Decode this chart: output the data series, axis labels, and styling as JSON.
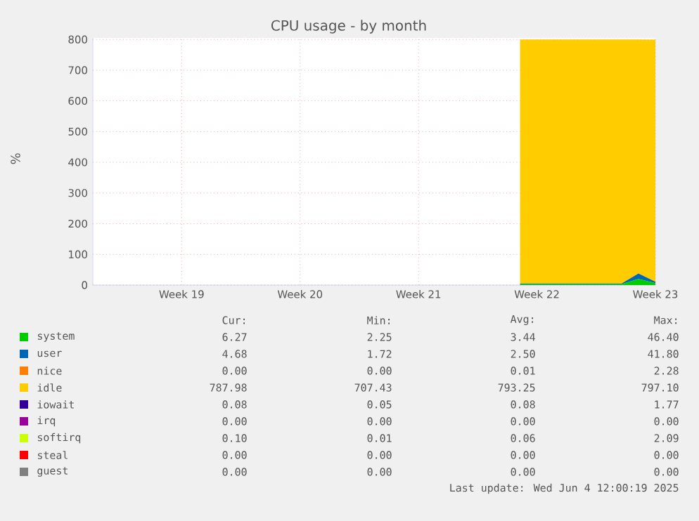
{
  "chart_data": {
    "type": "area",
    "stacked": true,
    "title": "CPU usage - by month",
    "ylabel": "%",
    "grid": true,
    "legend": "bottom",
    "categories": [
      null,
      null,
      null,
      null,
      null,
      "Week 19",
      null,
      null,
      null,
      null,
      null,
      null,
      "Week 20",
      null,
      null,
      null,
      null,
      null,
      null,
      "Week 21",
      null,
      null,
      null,
      null,
      null,
      null,
      "Week 22",
      null,
      null,
      null,
      null,
      null,
      null,
      "Week 23"
    ],
    "ylim": [
      0,
      805
    ],
    "yticks": [
      0,
      100,
      200,
      300,
      400,
      500,
      600,
      700,
      800
    ],
    "series": [
      {
        "name": "system",
        "color": "#00cc00",
        "values": [
          null,
          null,
          null,
          null,
          null,
          null,
          null,
          null,
          null,
          null,
          null,
          null,
          null,
          null,
          null,
          null,
          null,
          null,
          null,
          null,
          null,
          null,
          null,
          null,
          null,
          3,
          3,
          3,
          3,
          3,
          3,
          3,
          20,
          6
        ]
      },
      {
        "name": "user",
        "color": "#0066b3",
        "values": [
          null,
          null,
          null,
          null,
          null,
          null,
          null,
          null,
          null,
          null,
          null,
          null,
          null,
          null,
          null,
          null,
          null,
          null,
          null,
          null,
          null,
          null,
          null,
          null,
          null,
          2,
          2,
          2,
          2,
          2,
          2,
          2,
          18,
          5
        ]
      },
      {
        "name": "nice",
        "color": "#ff8000",
        "values": [
          null,
          null,
          null,
          null,
          null,
          null,
          null,
          null,
          null,
          null,
          null,
          null,
          null,
          null,
          null,
          null,
          null,
          null,
          null,
          null,
          null,
          null,
          null,
          null,
          null,
          null,
          null,
          null,
          null,
          null,
          null,
          null,
          null,
          null
        ]
      },
      {
        "name": "idle",
        "color": "#ffcc00",
        "values": [
          null,
          null,
          null,
          null,
          null,
          null,
          null,
          null,
          null,
          null,
          null,
          null,
          null,
          null,
          null,
          null,
          null,
          null,
          null,
          null,
          null,
          null,
          null,
          null,
          null,
          795,
          795,
          795,
          795,
          795,
          795,
          795,
          762,
          788
        ]
      },
      {
        "name": "iowait",
        "color": "#330099",
        "values": [
          null,
          null,
          null,
          null,
          null,
          null,
          null,
          null,
          null,
          null,
          null,
          null,
          null,
          null,
          null,
          null,
          null,
          null,
          null,
          null,
          null,
          null,
          null,
          null,
          null,
          null,
          null,
          null,
          null,
          null,
          null,
          null,
          null,
          null
        ]
      },
      {
        "name": "irq",
        "color": "#990099",
        "values": [
          null,
          null,
          null,
          null,
          null,
          null,
          null,
          null,
          null,
          null,
          null,
          null,
          null,
          null,
          null,
          null,
          null,
          null,
          null,
          null,
          null,
          null,
          null,
          null,
          null,
          null,
          null,
          null,
          null,
          null,
          null,
          null,
          null,
          null
        ]
      },
      {
        "name": "softirq",
        "color": "#ccff00",
        "values": [
          null,
          null,
          null,
          null,
          null,
          null,
          null,
          null,
          null,
          null,
          null,
          null,
          null,
          null,
          null,
          null,
          null,
          null,
          null,
          null,
          null,
          null,
          null,
          null,
          null,
          null,
          null,
          null,
          null,
          null,
          null,
          null,
          null,
          null
        ]
      },
      {
        "name": "steal",
        "color": "#ff0000",
        "values": [
          null,
          null,
          null,
          null,
          null,
          null,
          null,
          null,
          null,
          null,
          null,
          null,
          null,
          null,
          null,
          null,
          null,
          null,
          null,
          null,
          null,
          null,
          null,
          null,
          null,
          null,
          null,
          null,
          null,
          null,
          null,
          null,
          null,
          null
        ]
      },
      {
        "name": "guest",
        "color": "#808080",
        "values": [
          null,
          null,
          null,
          null,
          null,
          null,
          null,
          null,
          null,
          null,
          null,
          null,
          null,
          null,
          null,
          null,
          null,
          null,
          null,
          null,
          null,
          null,
          null,
          null,
          null,
          null,
          null,
          null,
          null,
          null,
          null,
          null,
          null,
          null
        ]
      }
    ],
    "annotations": [
      "Cur:",
      "Min:",
      "Avg:",
      "Max:",
      "6.27",
      "2.25",
      "3.44",
      "46.40",
      "4.68",
      "1.72",
      "2.50",
      "41.80",
      "0.00",
      "0.00",
      "0.01",
      "2.28",
      "787.98",
      "707.43",
      "793.25",
      "797.10",
      "0.08",
      "0.05",
      "0.08",
      "1.77",
      "0.00",
      "0.00",
      "0.00",
      "0.00",
      "0.10",
      "0.01",
      "0.06",
      "2.09",
      "0.00",
      "0.00",
      "0.00",
      "0.00",
      "0.00",
      "0.00",
      "0.00",
      "0.00",
      "Last update: Wed Jun  4 12:00:19 2025"
    ]
  }
}
